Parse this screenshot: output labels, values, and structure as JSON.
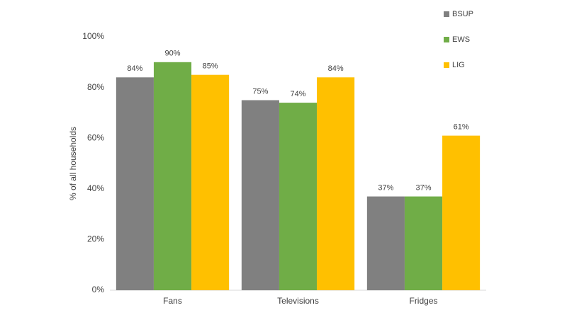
{
  "chart_data": {
    "type": "bar",
    "y_label": "% of all households",
    "categories": [
      "Fans",
      "Televisions",
      "Fridges"
    ],
    "series": [
      {
        "name": "BSUP",
        "color": "#808080",
        "values": [
          84,
          75,
          37
        ],
        "value_labels": [
          "84%",
          "75%",
          "37%"
        ]
      },
      {
        "name": "EWS",
        "color": "#70ad47",
        "values": [
          90,
          74,
          37
        ],
        "value_labels": [
          "90%",
          "74%",
          "37%"
        ]
      },
      {
        "name": "LIG",
        "color": "#ffc000",
        "values": [
          85,
          84,
          61
        ],
        "value_labels": [
          "85%",
          "84%",
          "61%"
        ]
      }
    ],
    "ylim": [
      0,
      100
    ],
    "yticks": [
      {
        "value": 0,
        "label": "0%"
      },
      {
        "value": 20,
        "label": "20%"
      },
      {
        "value": 40,
        "label": "40%"
      },
      {
        "value": 60,
        "label": "60%"
      },
      {
        "value": 80,
        "label": "80%"
      },
      {
        "value": 100,
        "label": "100%"
      }
    ],
    "grid": false,
    "legend": "top-right"
  }
}
